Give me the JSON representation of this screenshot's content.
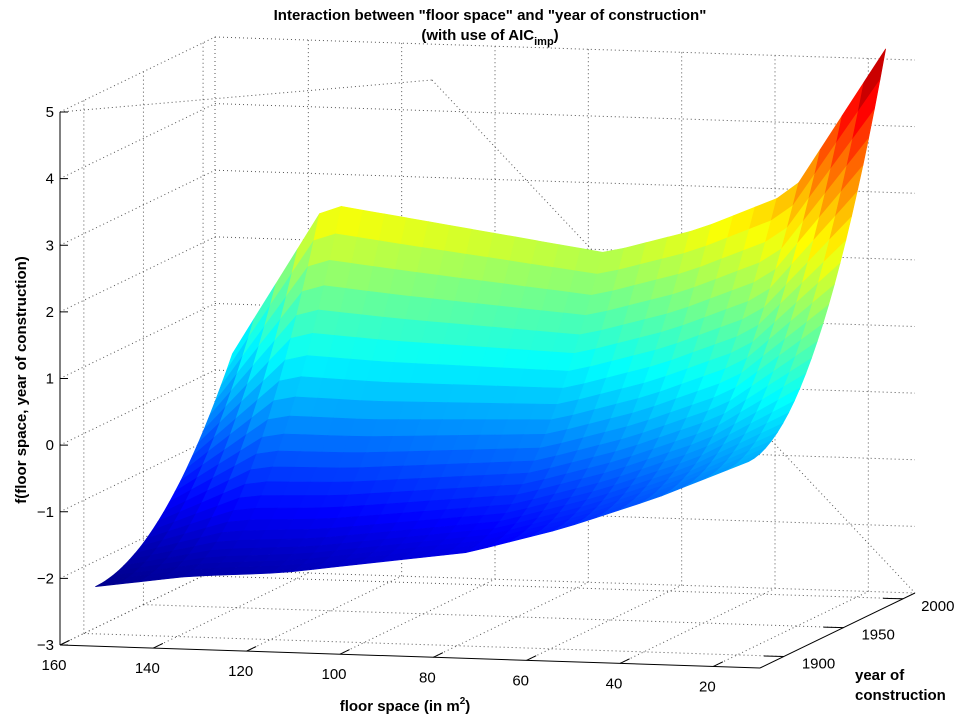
{
  "chart_data": {
    "type": "surface",
    "title_line1": "Interaction between \"floor space\" and \"year of construction\"",
    "title_line2_prefix": "(with use of AIC",
    "title_line2_sub": "imp",
    "title_line2_suffix": ")",
    "zlabel": "f(floor space, year of construction)",
    "xlabel_prefix": "floor space (in m",
    "xlabel_sup": "2",
    "xlabel_suffix": ")",
    "ylabel_line1": "year of",
    "ylabel_line2": "construction",
    "x_ticks": [
      "160",
      "140",
      "120",
      "100",
      "80",
      "60",
      "40",
      "20"
    ],
    "y_ticks": [
      "1900",
      "1950",
      "2000"
    ],
    "z_ticks": [
      "5",
      "4",
      "3",
      "2",
      "1",
      "0",
      "−1",
      "−2",
      "−3"
    ],
    "xlim": [
      10,
      160
    ],
    "ylim": [
      1880,
      2010
    ],
    "zlim": [
      -3,
      5
    ],
    "grid": true,
    "colormap": "jet",
    "approx_surface_values": {
      "x": [
        15,
        35,
        55,
        75,
        95,
        115,
        135,
        155
      ],
      "y_1890": [
        0.0,
        -0.6,
        -1.1,
        -1.5,
        -1.7,
        -1.9,
        -2.0,
        -2.2
      ],
      "y_2005": [
        5.2,
        3.0,
        2.4,
        2.0,
        2.2,
        2.4,
        2.6,
        0.3
      ]
    },
    "colors": {
      "jet_low": "#00008f",
      "jet_high": "#800000",
      "grid": "#555555"
    }
  }
}
